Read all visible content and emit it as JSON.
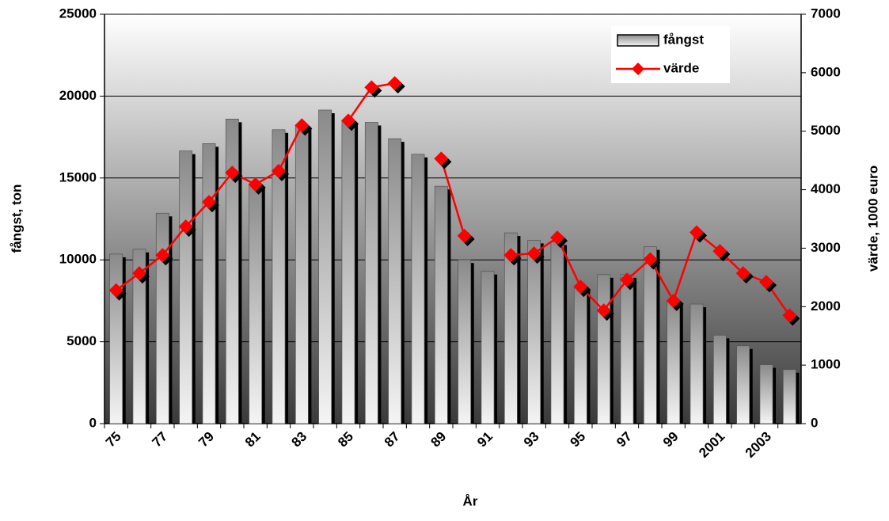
{
  "chart_data": {
    "type": "bar_line",
    "xlabel": "År",
    "ylabel": "fångst, ton",
    "y2label": "värde, 1000 euro",
    "categories": [
      "75",
      null,
      "77",
      null,
      "79",
      null,
      "81",
      null,
      "83",
      null,
      "85",
      null,
      "87",
      null,
      "89",
      null,
      "91",
      null,
      "93",
      null,
      "95",
      null,
      "97",
      null,
      "99",
      null,
      "2001",
      null,
      "2003",
      null
    ],
    "series": [
      {
        "name": "fångst",
        "type": "bar",
        "color": "#a0a0a0",
        "values": [
          10350,
          10650,
          12850,
          16650,
          17100,
          18600,
          14600,
          17950,
          18200,
          19150,
          18500,
          18400,
          17400,
          16450,
          14500,
          10000,
          9300,
          11650,
          11200,
          11100,
          8400,
          9100,
          9100,
          10800,
          7500,
          7300,
          5400,
          4750,
          3600,
          3300
        ]
      },
      {
        "name": "värde",
        "type": "line",
        "axis": "y2",
        "color": "#ff0000",
        "values": [
          2280,
          2570,
          2880,
          3370,
          3790,
          4290,
          4090,
          4320,
          5100,
          null,
          5180,
          5750,
          5820,
          null,
          4530,
          3210,
          null,
          2880,
          2910,
          3180,
          2340,
          1935,
          2460,
          2810,
          2100,
          3270,
          2950,
          2570,
          2420,
          1850
        ]
      }
    ],
    "ylim": [
      0,
      25000
    ],
    "yticks": [
      0,
      5000,
      10000,
      15000,
      20000,
      25000
    ],
    "y2lim": [
      0,
      7000
    ],
    "y2ticks": [
      0,
      1000,
      2000,
      3000,
      4000,
      5000,
      6000,
      7000
    ],
    "grid": true,
    "legend": "top-right"
  }
}
